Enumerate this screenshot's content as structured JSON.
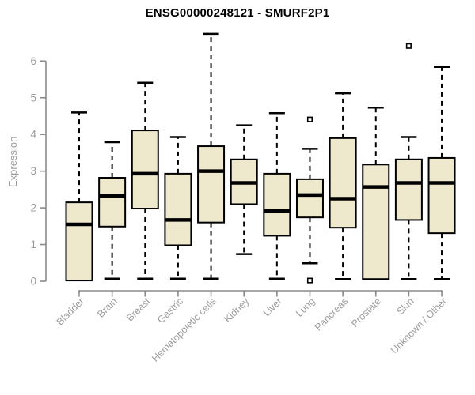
{
  "chart_data": {
    "type": "boxplot",
    "title": "ENSG00000248121 - SMURF2P1",
    "xlabel": "",
    "ylabel": "Expression",
    "ylim": [
      0,
      6.9
    ],
    "yticks": [
      0,
      1,
      2,
      3,
      4,
      5,
      6
    ],
    "grid": false,
    "legend": "none",
    "categories": [
      "Bladder",
      "Brain",
      "Breast",
      "Gastric",
      "Hematopoietic cells",
      "Kidney",
      "Liver",
      "Lung",
      "Pancreas",
      "Prostate",
      "Skin",
      "Unknown / Other"
    ],
    "series": [
      {
        "category": "Bladder",
        "whisker_low": 0.02,
        "q1": 0.02,
        "median": 1.55,
        "q3": 2.15,
        "whisker_high": 4.6,
        "outliers": []
      },
      {
        "category": "Brain",
        "whisker_low": 0.07,
        "q1": 1.49,
        "median": 2.33,
        "q3": 2.82,
        "whisker_high": 3.79,
        "outliers": []
      },
      {
        "category": "Breast",
        "whisker_low": 0.07,
        "q1": 1.98,
        "median": 2.93,
        "q3": 4.11,
        "whisker_high": 5.41,
        "outliers": []
      },
      {
        "category": "Gastric",
        "whisker_low": 0.07,
        "q1": 0.98,
        "median": 1.67,
        "q3": 2.93,
        "whisker_high": 3.93,
        "outliers": []
      },
      {
        "category": "Hematopoietic cells",
        "whisker_low": 0.07,
        "q1": 1.6,
        "median": 3.0,
        "q3": 3.68,
        "whisker_high": 6.74,
        "outliers": []
      },
      {
        "category": "Kidney",
        "whisker_low": 0.74,
        "q1": 2.1,
        "median": 2.68,
        "q3": 3.32,
        "whisker_high": 4.25,
        "outliers": []
      },
      {
        "category": "Liver",
        "whisker_low": 0.07,
        "q1": 1.24,
        "median": 1.92,
        "q3": 2.93,
        "whisker_high": 4.58,
        "outliers": []
      },
      {
        "category": "Lung",
        "whisker_low": 0.49,
        "q1": 1.74,
        "median": 2.35,
        "q3": 2.78,
        "whisker_high": 3.61,
        "outliers": [
          4.41,
          0.02
        ]
      },
      {
        "category": "Pancreas",
        "whisker_low": 0.06,
        "q1": 1.46,
        "median": 2.25,
        "q3": 3.9,
        "whisker_high": 5.12,
        "outliers": []
      },
      {
        "category": "Prostate",
        "whisker_low": 0.06,
        "q1": 0.06,
        "median": 2.57,
        "q3": 3.18,
        "whisker_high": 4.73,
        "outliers": []
      },
      {
        "category": "Skin",
        "whisker_low": 0.06,
        "q1": 1.67,
        "median": 2.68,
        "q3": 3.32,
        "whisker_high": 3.93,
        "outliers": [
          6.41
        ]
      },
      {
        "category": "Unknown / Other",
        "whisker_low": 0.06,
        "q1": 1.31,
        "median": 2.68,
        "q3": 3.36,
        "whisker_high": 5.84,
        "outliers": []
      }
    ],
    "colors": {
      "box_fill": "#EEE8CD",
      "box_border": "#000000",
      "median_line": "#000000",
      "whisker": "#000000",
      "outlier": "#000000",
      "axis_line": "#8a8a8a",
      "tick_label": "#9c9c9c",
      "title_text": "#000000"
    }
  }
}
